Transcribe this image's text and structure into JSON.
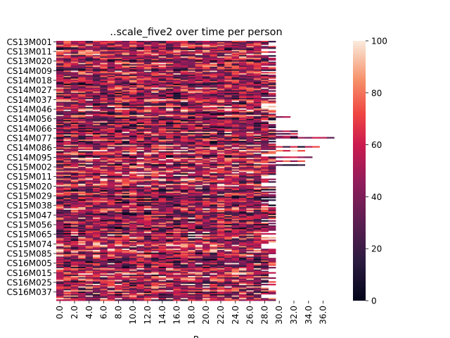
{
  "chart_data": {
    "type": "heatmap",
    "title": "..scale_five2 over time per person",
    "xlabel": "B",
    "ylabel": "",
    "x_tick_labels": [
      "0.0",
      "2.0",
      "4.0",
      "6.0",
      "8.0",
      "10.0",
      "12.0",
      "14.0",
      "16.0",
      "18.0",
      "20.0",
      "22.0",
      "24.0",
      "26.0",
      "28.0",
      "30.0",
      "32.0",
      "34.0",
      "36.0"
    ],
    "y_tick_labels": [
      "CS13M001",
      "CS13M011",
      "CS13M020",
      "CS14M009",
      "CS14M018",
      "CS14M027",
      "CS14M037",
      "CS14M046",
      "CS14M056",
      "CS14M066",
      "CS14M077",
      "CS14M086",
      "CS14M095",
      "CS15M002",
      "CS15M011",
      "CS15M020",
      "CS15M029",
      "CS15M038",
      "CS15M047",
      "CS15M056",
      "CS15M065",
      "CS15M074",
      "CS15M085",
      "CS16M005",
      "CS16M015",
      "CS16M025",
      "CS16M037"
    ],
    "x_range": [
      0,
      38
    ],
    "n_rows": 200,
    "value_range": [
      0,
      100
    ],
    "colorbar_ticks": [
      0,
      20,
      40,
      60,
      80,
      100
    ],
    "colormap": "rocket",
    "typical_column_count": 30,
    "long_rows": [
      {
        "row": 58,
        "columns": 32
      },
      {
        "row": 69,
        "columns": 33
      },
      {
        "row": 71,
        "columns": 33
      },
      {
        "row": 73,
        "columns": 33
      },
      {
        "row": 74,
        "columns": 38
      },
      {
        "row": 81,
        "columns": 36
      },
      {
        "row": 84,
        "columns": 34
      },
      {
        "row": 89,
        "columns": 35
      },
      {
        "row": 92,
        "columns": 34
      },
      {
        "row": 95,
        "columns": 34
      }
    ]
  }
}
